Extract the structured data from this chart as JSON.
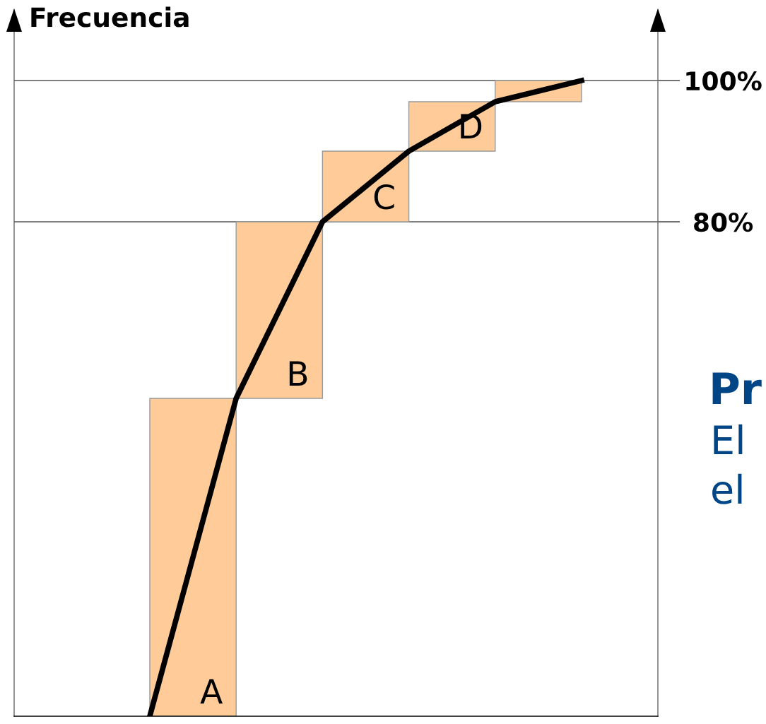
{
  "chart_data": {
    "type": "bar",
    "ylabel": "Frecuencia",
    "categories": [
      null,
      null,
      null,
      null,
      null,
      null
    ],
    "series": [
      {
        "color": "#ffcc99",
        "values": [
          45,
          25,
          10,
          7,
          3,
          null
        ],
        "base": [
          10,
          55,
          80,
          90,
          97,
          null
        ],
        "value_labels": [
          "A",
          "B",
          "C",
          "D",
          null,
          null
        ]
      },
      {
        "type": "line",
        "color": "#000000",
        "values": [
          10,
          55,
          80,
          90,
          97,
          100
        ]
      }
    ],
    "ylim": [
      10,
      110
    ],
    "yticks": [
      {
        "value": 80,
        "label": "80%"
      },
      {
        "value": 100,
        "label": "100%"
      }
    ],
    "grid": "y",
    "tick_labels": "y",
    "annotations": [
      "Pr",
      "El",
      "el"
    ]
  }
}
